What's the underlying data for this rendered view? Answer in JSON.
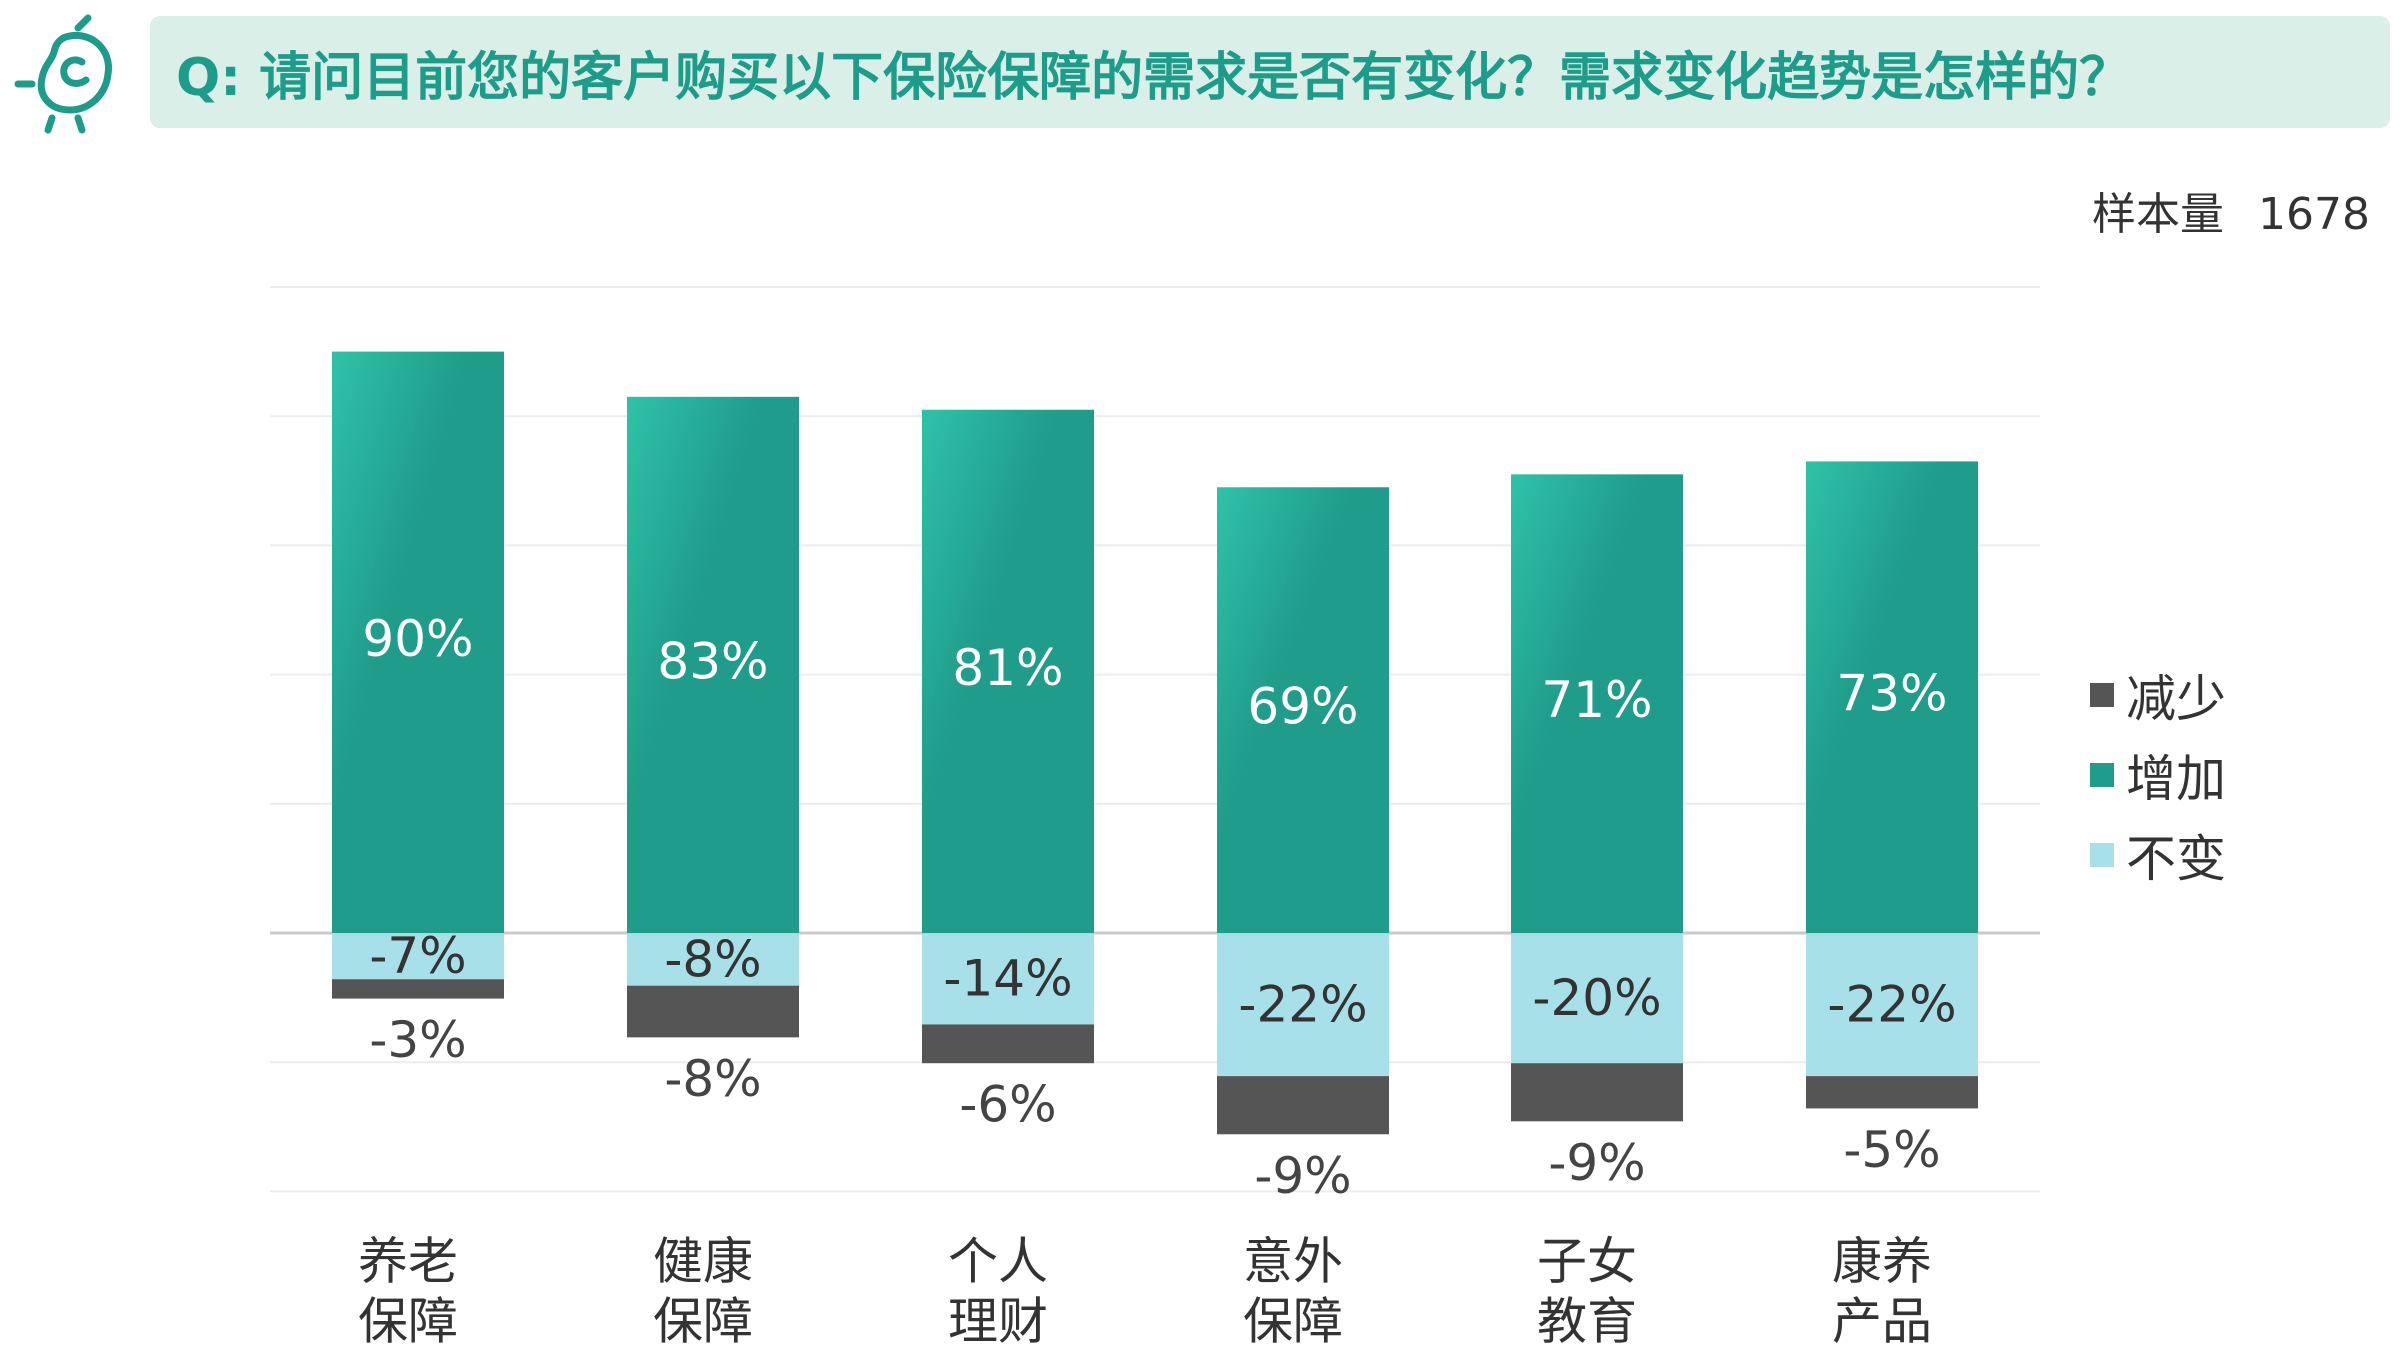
{
  "header": {
    "title": "Q: 请问目前您的客户购买以下保险保障的需求是否有变化？需求变化趋势是怎样的？",
    "sample_label": "样本量",
    "sample_value": "1678"
  },
  "colors": {
    "accent": "#1e9c8a",
    "banner": "#d9efe8",
    "increase_top": "#2fc2a8",
    "increase": "#1f9c8a",
    "unchanged": "#a8e0ea",
    "decrease": "#555555"
  },
  "chart_data": {
    "type": "bar",
    "stacked": true,
    "categories": [
      [
        "养老",
        "保障"
      ],
      [
        "健康",
        "保障"
      ],
      [
        "个人",
        "理财"
      ],
      [
        "意外",
        "保障"
      ],
      [
        "子女",
        "教育"
      ],
      [
        "康养",
        "产品"
      ]
    ],
    "series": [
      {
        "name": "增加",
        "key": "increase",
        "values": [
          90,
          83,
          81,
          69,
          71,
          73
        ],
        "labels": [
          "90%",
          "83%",
          "81%",
          "69%",
          "71%",
          "73%"
        ]
      },
      {
        "name": "不变",
        "key": "unchanged",
        "values": [
          -7,
          -8,
          -14,
          -22,
          -20,
          -22
        ],
        "labels": [
          "-7%",
          "-8%",
          "-14%",
          "-22%",
          "-20%",
          "-22%"
        ]
      },
      {
        "name": "减少",
        "key": "decrease",
        "values": [
          -3,
          -8,
          -6,
          -9,
          -9,
          -5
        ],
        "labels": [
          "-3%",
          "-8%",
          "-6%",
          "-9%",
          "-9%",
          "-5%"
        ]
      }
    ],
    "legend": [
      "减少",
      "增加",
      "不变"
    ],
    "ylim": [
      -40,
      100
    ],
    "grid": true,
    "legend_position": "right"
  }
}
